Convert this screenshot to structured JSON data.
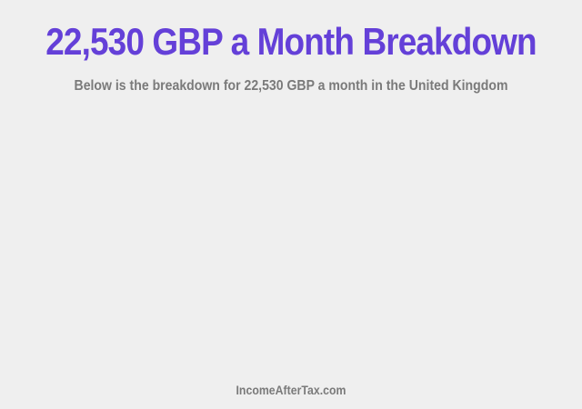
{
  "title": "22,530 GBP a Month Breakdown",
  "subtitle": "Below is the breakdown for 22,530 GBP a month in the United Kingdom",
  "footer": "IncomeAfterTax.com"
}
